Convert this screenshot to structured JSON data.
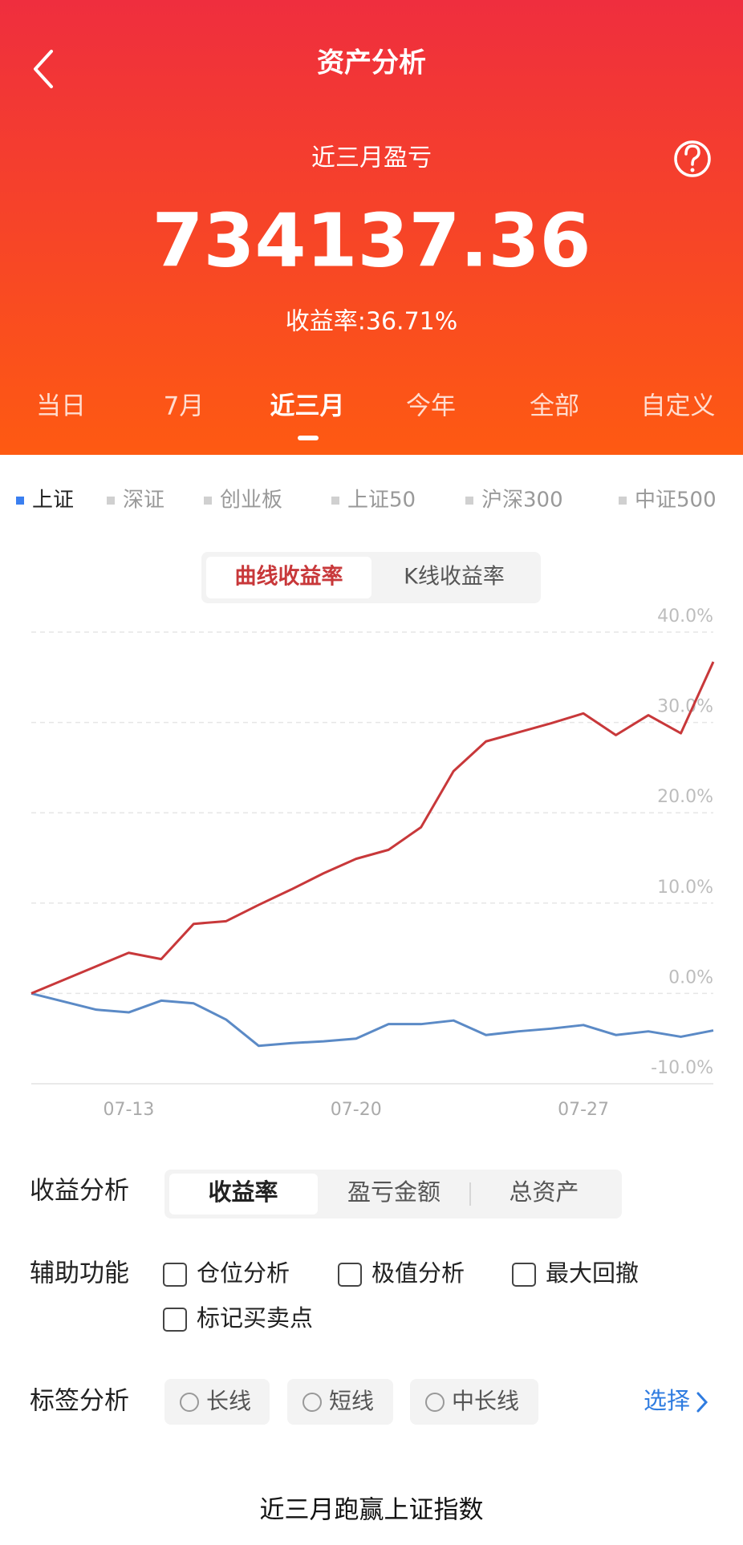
{
  "header": {
    "title": "资产分析",
    "period_label": "近三月盈亏",
    "profit": "734137.36",
    "return_label": "收益率:36.71%"
  },
  "period_tabs": [
    "当日",
    "7月",
    "近三月",
    "今年",
    "全部",
    "自定义"
  ],
  "index_tabs": [
    "上证",
    "深证",
    "创业板",
    "上证50",
    "沪深300",
    "中证500"
  ],
  "chart_toggle": [
    "曲线收益率",
    "K线收益率"
  ],
  "chart_data": {
    "type": "line",
    "categories": [
      null,
      null,
      null,
      "07-13",
      null,
      null,
      null,
      null,
      null,
      null,
      "07-20",
      null,
      null,
      null,
      null,
      null,
      null,
      "07-27",
      null,
      null,
      null,
      null
    ],
    "series": [
      {
        "color": "#c8383a",
        "values": [
          0,
          1.5,
          3.0,
          4.5,
          3.8,
          7.7,
          8.0,
          9.8,
          11.5,
          13.3,
          14.9,
          15.9,
          18.4,
          24.6,
          27.9,
          28.9,
          29.9,
          31.0,
          28.6,
          30.8,
          28.8,
          36.71
        ]
      },
      {
        "color": "#5b8ac6",
        "values": [
          0,
          -0.9,
          -1.8,
          -2.1,
          -0.8,
          -1.1,
          -2.9,
          -5.8,
          -5.5,
          -5.3,
          -5.0,
          -3.4,
          -3.4,
          -3.0,
          -4.6,
          -4.2,
          -3.9,
          -3.5,
          -4.6,
          -4.2,
          -4.8,
          -4.1
        ]
      }
    ],
    "ylim": [
      -10,
      40
    ],
    "yticks": [
      {
        "value": 40,
        "label": "40.0%"
      },
      {
        "value": 30,
        "label": "30.0%"
      },
      {
        "value": 20,
        "label": "20.0%"
      },
      {
        "value": 10,
        "label": "10.0%"
      },
      {
        "value": 0,
        "label": "0.0%"
      },
      {
        "value": -10,
        "label": "-10.0%"
      }
    ],
    "grid": true
  },
  "analysis": {
    "label": "收益分析",
    "options": [
      "收益率",
      "盈亏金额",
      "总资产"
    ]
  },
  "aux": {
    "label": "辅助功能",
    "options": [
      "仓位分析",
      "极值分析",
      "最大回撤",
      "标记买卖点"
    ]
  },
  "tags": {
    "label": "标签分析",
    "options": [
      "长线",
      "短线",
      "中长线"
    ],
    "action": "选择"
  },
  "footer": "近三月跑赢上证指数"
}
